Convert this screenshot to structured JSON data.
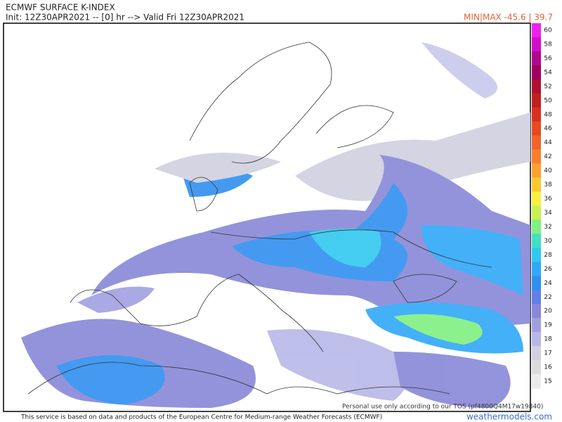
{
  "header": {
    "title": "ECMWF SURFACE K-INDEX",
    "subtitle": "Init: 12Z30APR2021 -- [0] hr --> Valid Fri 12Z30APR2021",
    "minmax": "MIN|MAX -45.6 | 39.7"
  },
  "colorbar": {
    "levels": [
      {
        "label": "60",
        "color": "#f020f0"
      },
      {
        "label": "58",
        "color": "#d010c8"
      },
      {
        "label": "56",
        "color": "#b00890"
      },
      {
        "label": "54",
        "color": "#a00060"
      },
      {
        "label": "52",
        "color": "#b01030"
      },
      {
        "label": "50",
        "color": "#c02020"
      },
      {
        "label": "48",
        "color": "#d83020"
      },
      {
        "label": "46",
        "color": "#e84a20"
      },
      {
        "label": "44",
        "color": "#f06428"
      },
      {
        "label": "42",
        "color": "#f88030"
      },
      {
        "label": "40",
        "color": "#fca030"
      },
      {
        "label": "38",
        "color": "#fcc830"
      },
      {
        "label": "36",
        "color": "#f8f040"
      },
      {
        "label": "34",
        "color": "#c8f050"
      },
      {
        "label": "32",
        "color": "#80f080"
      },
      {
        "label": "30",
        "color": "#40e0c0"
      },
      {
        "label": "28",
        "color": "#30c8f0"
      },
      {
        "label": "26",
        "color": "#30a8f8"
      },
      {
        "label": "24",
        "color": "#3090f0"
      },
      {
        "label": "22",
        "color": "#6080e8"
      },
      {
        "label": "20",
        "color": "#8888d8"
      },
      {
        "label": "19",
        "color": "#a0a0e0"
      },
      {
        "label": "18",
        "color": "#b8b8e8"
      },
      {
        "label": "17",
        "color": "#d0d0e0"
      },
      {
        "label": "16",
        "color": "#dcdcdc"
      },
      {
        "label": "15",
        "color": "#ececec"
      }
    ]
  },
  "footer": {
    "disclaimer": "This service is based on data and products of the European Centre for Medium-range Weather Forecasts (ECMWF)",
    "credit": "weathermodels.com",
    "tos": "Personal use only according to our TOS (pf4800Q4M17w19840)"
  }
}
